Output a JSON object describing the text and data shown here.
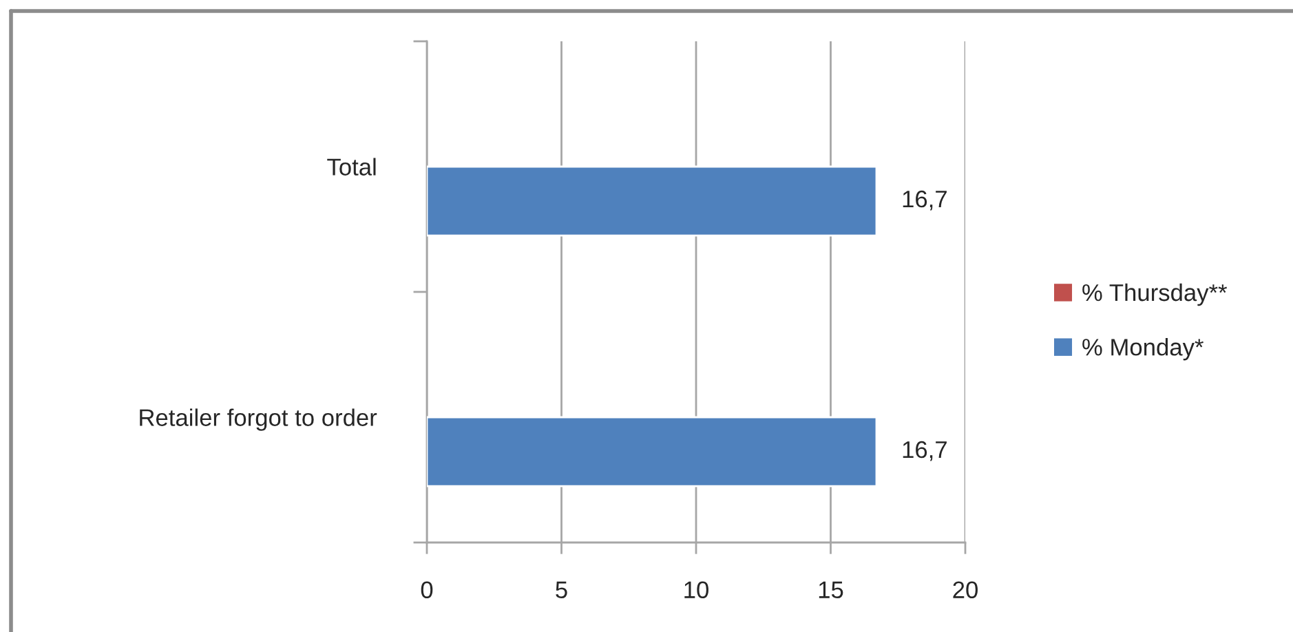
{
  "chart_data": {
    "type": "bar",
    "orientation": "horizontal",
    "categories": [
      "Total",
      "Retailer forgot to order"
    ],
    "series": [
      {
        "name": "% Thursday**",
        "color": "#c0504d",
        "values": [
          null,
          null
        ]
      },
      {
        "name": "% Monday*",
        "color": "#4f81bd",
        "values": [
          16.7,
          16.7
        ],
        "value_labels": [
          "16,7",
          "16,7"
        ]
      }
    ],
    "xlim": [
      0,
      20
    ],
    "xticks": [
      0,
      5,
      10,
      15,
      20
    ],
    "grid": "x",
    "legend": "right"
  }
}
